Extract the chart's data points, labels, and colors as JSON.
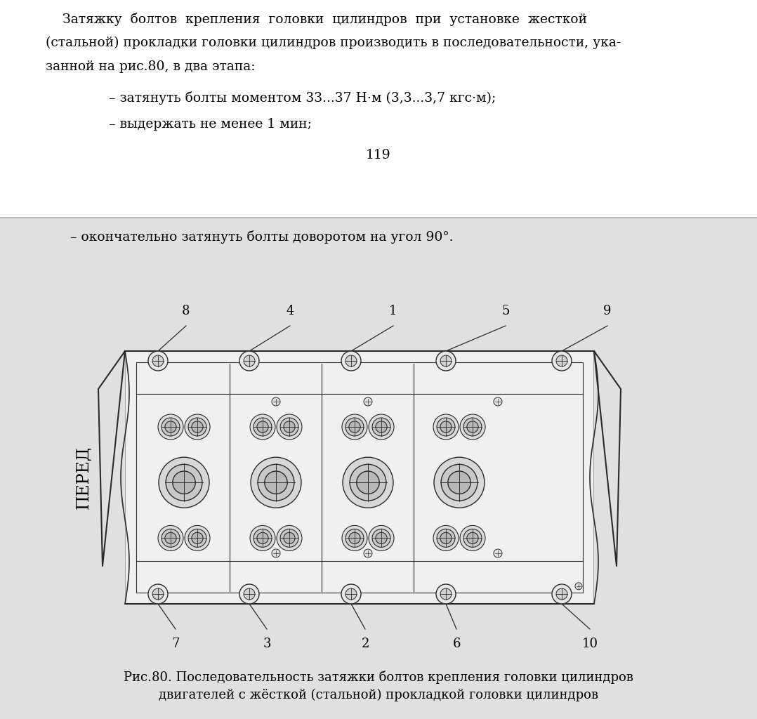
{
  "bg_color": "#ffffff",
  "separator_color": "#bbbbbb",
  "bottom_bg": "#e0e0e0",
  "line_color": "#2a2a2a",
  "top_text_line1": "    Затяжку  болтов  крепления  головки  цилиндров  при  установке  жесткой",
  "top_text_line2": "(стальной) прокладки головки цилиндров производить в последовательности, ука-",
  "top_text_line3": "занной на рис.80, в два этапа:",
  "bullet1": "– затянуть болты моментом 33...37 Н·м (3,3...3,7 кгс·м);",
  "bullet2": "– выдержать не менее 1 мин;",
  "page_num": "119",
  "bullet3": "– окончательно затянуть болты доворотом на угол 90°.",
  "pered_label": "ПЕРЕД",
  "top_numbers": [
    "8",
    "4",
    "1",
    "5",
    "9"
  ],
  "bottom_numbers": [
    "7",
    "3",
    "2",
    "6",
    "10"
  ],
  "caption_line1": "Рис.80. Последовательность затяжки болтов крепления головки цилиндров",
  "caption_line2": "двигателей с жёсткой (стальной) прокладкой головки цилиндров"
}
